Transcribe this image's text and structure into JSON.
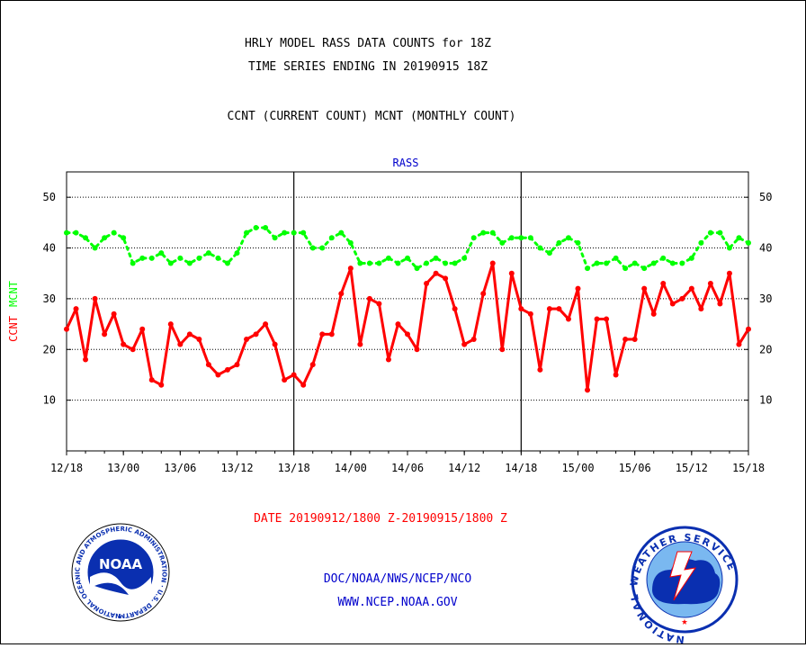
{
  "header": {
    "title_line1": "HRLY MODEL RASS DATA COUNTS for 18Z",
    "title_line2": "TIME SERIES ENDING IN 20190915 18Z",
    "subtitle": "CCNT (CURRENT COUNT) MCNT (MONTHLY COUNT)"
  },
  "chart_data": {
    "type": "line",
    "title": "RASS",
    "ylabel_ccnt": "CCNT",
    "ylabel_mcnt": "MCNT",
    "xlabel": "DATE 20190912/1800 Z-20190915/1800 Z",
    "ylim": [
      0,
      55
    ],
    "yticks": [
      10,
      20,
      30,
      40,
      50
    ],
    "xlim": [
      0,
      72
    ],
    "xtick_labels": [
      "12/18",
      "13/00",
      "13/06",
      "13/12",
      "13/18",
      "14/00",
      "14/06",
      "14/12",
      "14/18",
      "15/00",
      "15/06",
      "15/12",
      "15/18"
    ],
    "xtick_positions": [
      0,
      6,
      12,
      18,
      24,
      30,
      36,
      42,
      48,
      54,
      60,
      66,
      72
    ],
    "day_dividers": [
      24,
      48
    ],
    "grid": "horizontal dotted",
    "series": [
      {
        "name": "CCNT",
        "color": "#ff0000",
        "style": "solid",
        "values": [
          24,
          28,
          18,
          30,
          23,
          27,
          21,
          20,
          24,
          14,
          13,
          25,
          21,
          23,
          22,
          17,
          15,
          16,
          17,
          22,
          23,
          25,
          21,
          14,
          15,
          13,
          17,
          23,
          23,
          31,
          36,
          21,
          30,
          29,
          18,
          25,
          23,
          20,
          33,
          35,
          34,
          28,
          21,
          22,
          31,
          37,
          20,
          35,
          28,
          27,
          16,
          28,
          28,
          26,
          32,
          12,
          26,
          26,
          15,
          22,
          22,
          32,
          27,
          33,
          29,
          30,
          32,
          28,
          33,
          29,
          35,
          21,
          24
        ]
      },
      {
        "name": "MCNT",
        "color": "#00ff00",
        "style": "dotted",
        "values": [
          43,
          43,
          42,
          40,
          42,
          43,
          42,
          37,
          38,
          38,
          39,
          37,
          38,
          37,
          38,
          39,
          38,
          37,
          39,
          43,
          44,
          44,
          42,
          43,
          43,
          43,
          40,
          40,
          42,
          43,
          41,
          37,
          37,
          37,
          38,
          37,
          38,
          36,
          37,
          38,
          37,
          37,
          38,
          42,
          43,
          43,
          41,
          42,
          42,
          42,
          40,
          39,
          41,
          42,
          41,
          36,
          37,
          37,
          38,
          36,
          37,
          36,
          37,
          38,
          37,
          37,
          38,
          41,
          43,
          43,
          40,
          42,
          41
        ]
      }
    ]
  },
  "footer": {
    "agency_line": "DOC/NOAA/NWS/NCEP/NCO",
    "url_line": "WWW.NCEP.NOAA.GOV",
    "noaa_logo_text": "NOAA",
    "noaa_ring_text": "NATIONAL OCEANIC AND ATMOSPHERIC ADMINISTRATION · U.S. DEPARTMENT OF COMMERCE",
    "nws_ring_text": "NATIONAL WEATHER SERVICE"
  },
  "colors": {
    "title": "#000000",
    "ccnt": "#ff0000",
    "mcnt": "#00ff00",
    "blue_text": "#0000cc",
    "date_text": "#ff0000"
  }
}
